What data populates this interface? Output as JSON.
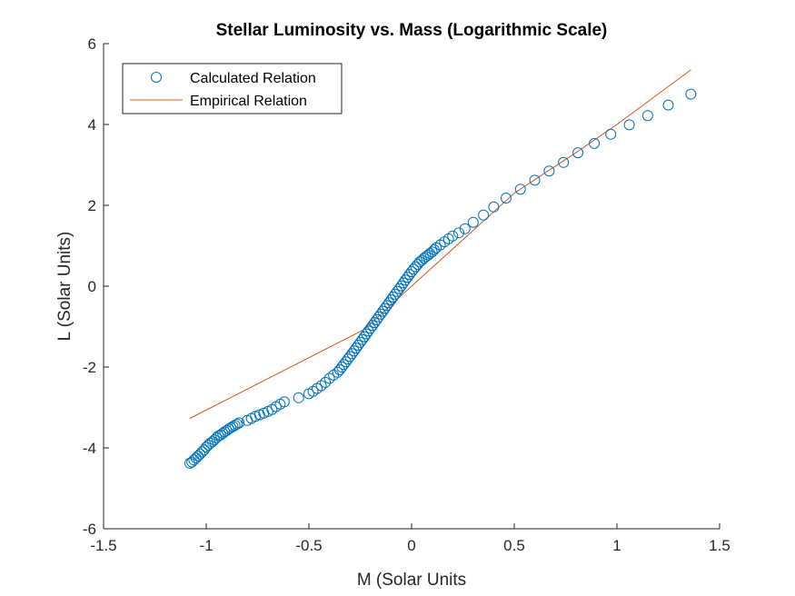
{
  "chart_data": {
    "type": "scatter",
    "title": "Stellar Luminosity vs. Mass (Logarithmic Scale)",
    "xlabel": "M (Solar Units",
    "ylabel": "L (Solar Units)",
    "xlim": [
      -1.5,
      1.5
    ],
    "ylim": [
      -6,
      6
    ],
    "xticks": [
      -1.5,
      -1,
      -0.5,
      0,
      0.5,
      1,
      1.5
    ],
    "xtick_labels": [
      "-1.5",
      "-1",
      "-0.5",
      "0",
      "0.5",
      "1",
      "1.5"
    ],
    "yticks": [
      -6,
      -4,
      -2,
      0,
      2,
      4,
      6
    ],
    "ytick_labels": [
      "-6",
      "-4",
      "-2",
      "0",
      "2",
      "4",
      "6"
    ],
    "grid": false,
    "legend_position": "top-left",
    "series": [
      {
        "name": "Calculated Relation",
        "style": "circle-markers",
        "color": "#0072BD",
        "x": [
          -1.08,
          -1.07,
          -1.06,
          -1.05,
          -1.04,
          -1.03,
          -1.02,
          -1.01,
          -1.0,
          -0.99,
          -0.98,
          -0.97,
          -0.96,
          -0.95,
          -0.94,
          -0.93,
          -0.92,
          -0.91,
          -0.9,
          -0.89,
          -0.88,
          -0.87,
          -0.86,
          -0.85,
          -0.84,
          -0.8,
          -0.78,
          -0.76,
          -0.74,
          -0.72,
          -0.7,
          -0.68,
          -0.66,
          -0.64,
          -0.62,
          -0.55,
          -0.5,
          -0.48,
          -0.46,
          -0.44,
          -0.42,
          -0.4,
          -0.38,
          -0.36,
          -0.35,
          -0.34,
          -0.33,
          -0.32,
          -0.31,
          -0.3,
          -0.29,
          -0.28,
          -0.27,
          -0.26,
          -0.25,
          -0.24,
          -0.23,
          -0.22,
          -0.21,
          -0.2,
          -0.19,
          -0.18,
          -0.17,
          -0.16,
          -0.15,
          -0.14,
          -0.13,
          -0.12,
          -0.11,
          -0.1,
          -0.09,
          -0.08,
          -0.07,
          -0.06,
          -0.05,
          -0.04,
          -0.03,
          -0.02,
          -0.01,
          0.0,
          0.01,
          0.02,
          0.03,
          0.04,
          0.05,
          0.06,
          0.07,
          0.08,
          0.09,
          0.1,
          0.11,
          0.12,
          0.14,
          0.16,
          0.18,
          0.2,
          0.23,
          0.26,
          0.3,
          0.35,
          0.4,
          0.46,
          0.53,
          0.6,
          0.67,
          0.74,
          0.81,
          0.89,
          0.97,
          1.06,
          1.15,
          1.25,
          1.36
        ],
        "y": [
          -4.38,
          -4.35,
          -4.3,
          -4.25,
          -4.2,
          -4.15,
          -4.1,
          -4.05,
          -3.98,
          -3.93,
          -3.88,
          -3.85,
          -3.8,
          -3.75,
          -3.7,
          -3.68,
          -3.64,
          -3.6,
          -3.57,
          -3.53,
          -3.5,
          -3.47,
          -3.44,
          -3.41,
          -3.38,
          -3.32,
          -3.27,
          -3.22,
          -3.18,
          -3.14,
          -3.1,
          -3.05,
          -2.98,
          -2.92,
          -2.86,
          -2.76,
          -2.66,
          -2.6,
          -2.53,
          -2.46,
          -2.38,
          -2.28,
          -2.2,
          -2.13,
          -2.07,
          -2.0,
          -1.94,
          -1.87,
          -1.8,
          -1.74,
          -1.67,
          -1.6,
          -1.53,
          -1.46,
          -1.39,
          -1.32,
          -1.25,
          -1.18,
          -1.11,
          -1.04,
          -0.97,
          -0.9,
          -0.83,
          -0.76,
          -0.69,
          -0.62,
          -0.55,
          -0.48,
          -0.41,
          -0.34,
          -0.27,
          -0.2,
          -0.13,
          -0.06,
          0.01,
          0.08,
          0.15,
          0.22,
          0.29,
          0.36,
          0.42,
          0.48,
          0.54,
          0.6,
          0.64,
          0.69,
          0.73,
          0.77,
          0.81,
          0.85,
          0.9,
          0.95,
          1.02,
          1.1,
          1.17,
          1.24,
          1.32,
          1.42,
          1.58,
          1.76,
          1.96,
          2.18,
          2.4,
          2.62,
          2.85,
          3.06,
          3.3,
          3.53,
          3.76,
          3.99,
          4.22,
          4.48,
          4.75
        ]
      },
      {
        "name": "Empirical Relation",
        "style": "line",
        "color": "#D95319",
        "x": [
          -1.08,
          -0.23,
          0.0,
          0.2,
          0.5,
          0.8,
          1.0,
          1.2,
          1.36
        ],
        "y": [
          -3.27,
          -1.07,
          0.0,
          0.92,
          2.3,
          3.3,
          4.0,
          4.75,
          5.35
        ]
      }
    ]
  }
}
